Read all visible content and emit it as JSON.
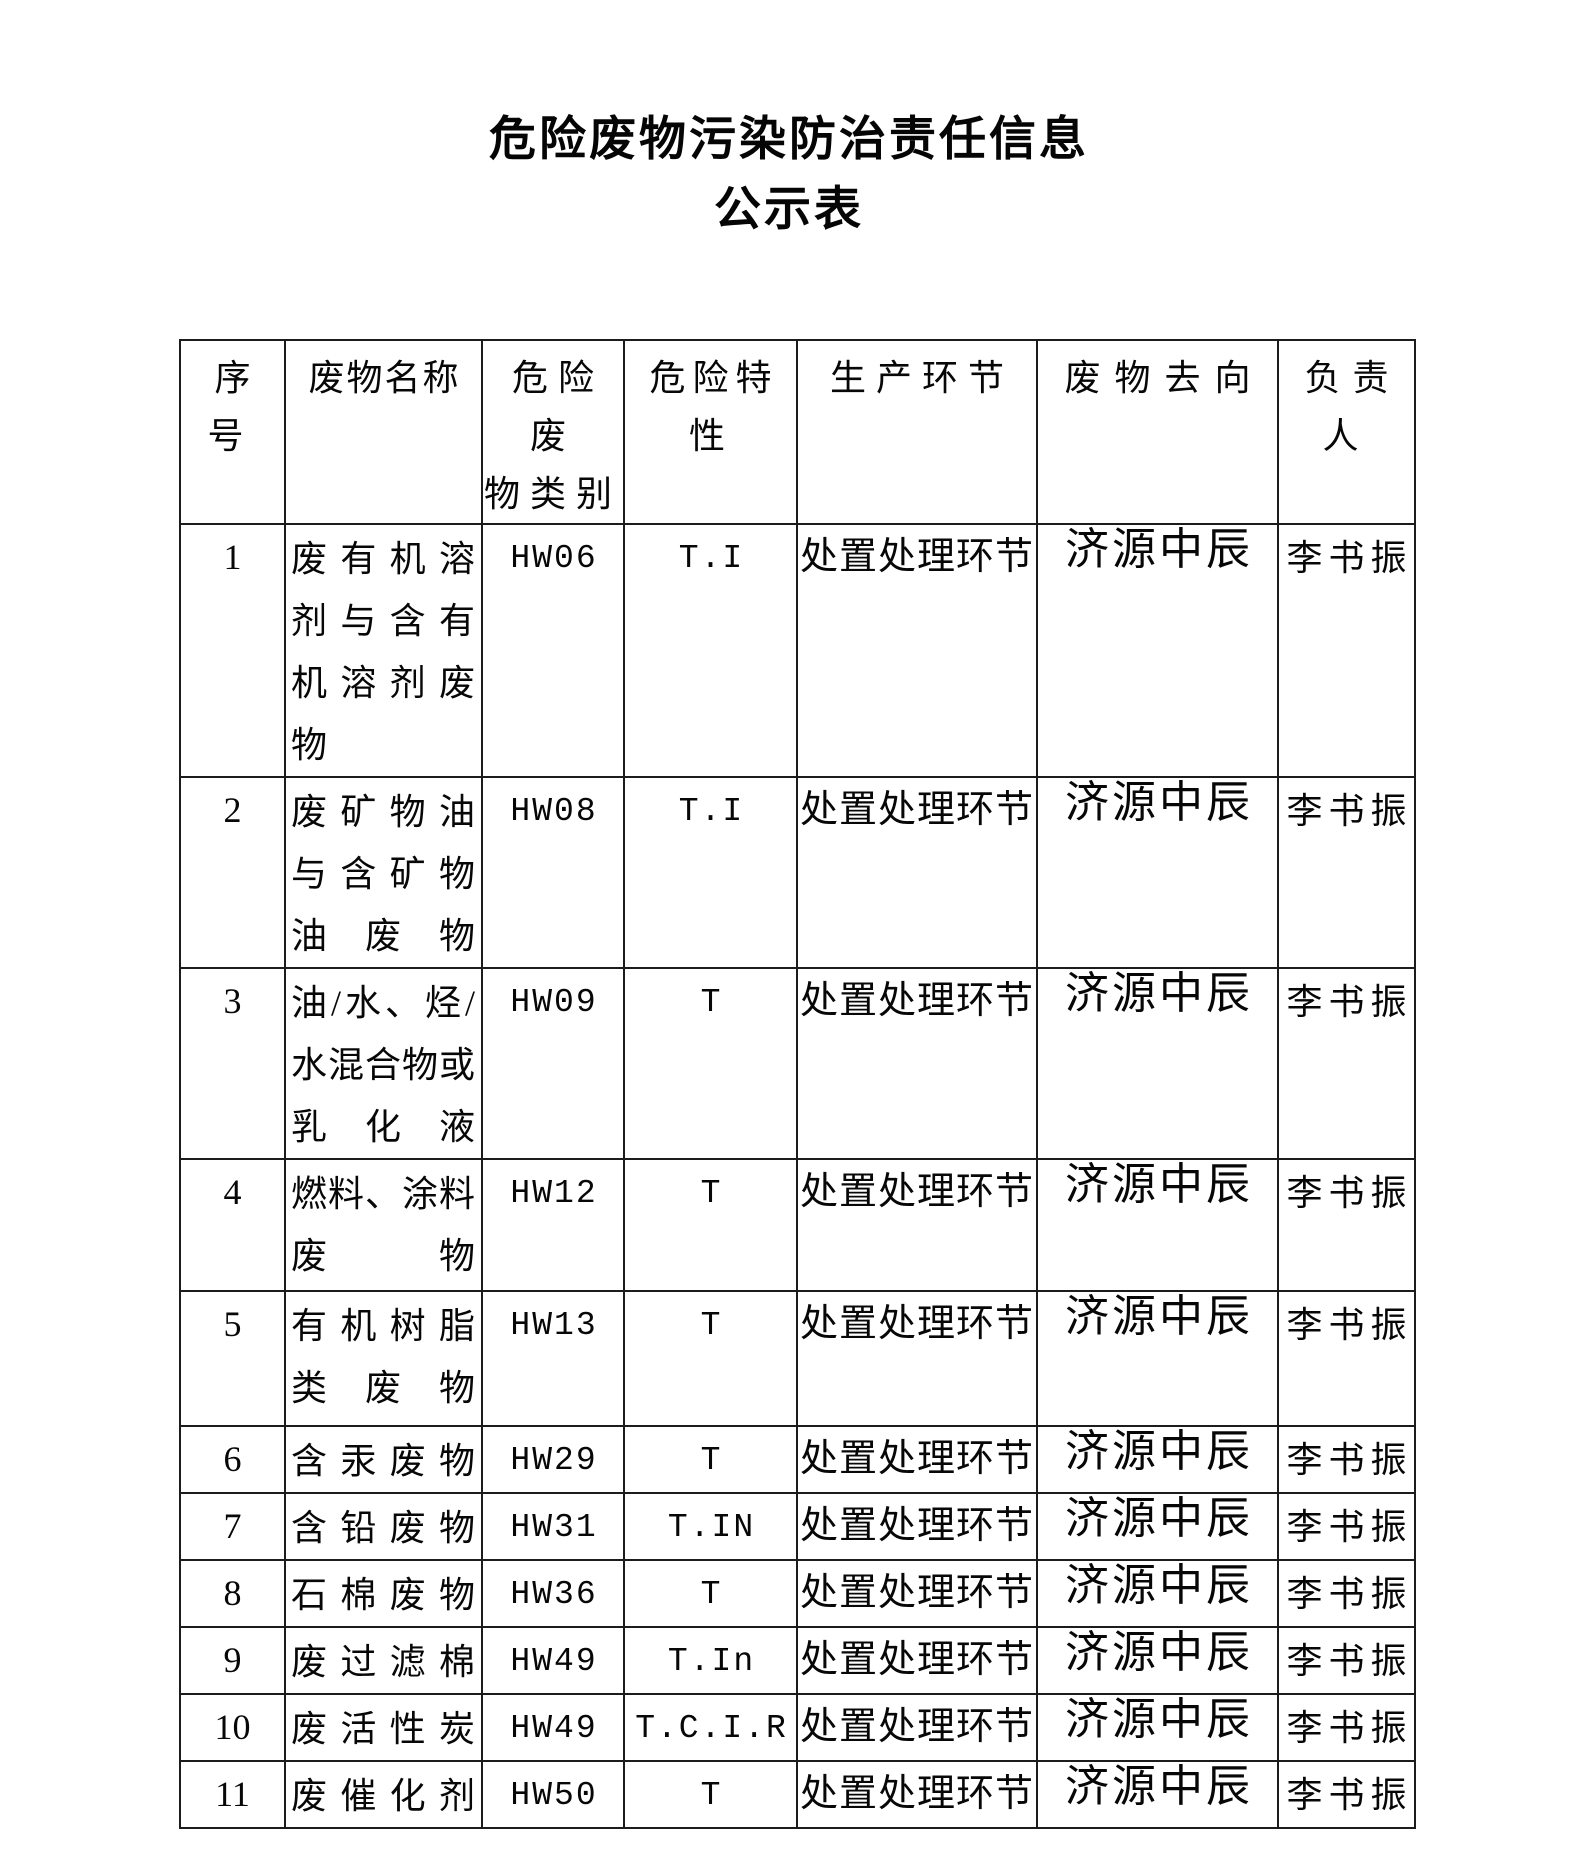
{
  "title": {
    "line1": "危险废物污染防治责任信息",
    "line2": "公示表"
  },
  "table": {
    "headers": [
      "序号",
      "废物名称",
      "危险废\n物类别",
      "危险特性",
      "生产环节",
      "废物去向",
      "负责人"
    ],
    "rows": [
      {
        "no": "1",
        "name_lines": [
          "废有机溶",
          "剂与含有",
          "机溶剂废",
          "物"
        ],
        "category": "HW06",
        "characteristic": "T.I",
        "stage": "处置处理环节",
        "destination": "济源中辰",
        "manager": "李书振"
      },
      {
        "no": "2",
        "name_lines": [
          "废矿物油",
          "与含矿物",
          "油废物"
        ],
        "category": "HW08",
        "characteristic": "T.I",
        "stage": "处置处理环节",
        "destination": "济源中辰",
        "manager": "李书振"
      },
      {
        "no": "3",
        "name_lines": [
          "油/水、烃/",
          "水混合物或",
          "乳化液"
        ],
        "category": "HW09",
        "characteristic": "T",
        "stage": "处置处理环节",
        "destination": "济源中辰",
        "manager": "李书振"
      },
      {
        "no": "4",
        "name_lines": [
          "燃料、涂料",
          "废物"
        ],
        "category": "HW12",
        "characteristic": "T",
        "stage": "处置处理环节",
        "destination": "济源中辰",
        "manager": "李书振"
      },
      {
        "no": "5",
        "name_lines": [
          "有机树脂",
          "类废物"
        ],
        "category": "HW13",
        "characteristic": "T",
        "stage": "处置处理环节",
        "destination": "济源中辰",
        "manager": "李书振"
      },
      {
        "no": "6",
        "name_lines": [
          "含汞废物"
        ],
        "category": "HW29",
        "characteristic": "T",
        "stage": "处置处理环节",
        "destination": "济源中辰",
        "manager": "李书振"
      },
      {
        "no": "7",
        "name_lines": [
          "含铅废物"
        ],
        "category": "HW31",
        "characteristic": "T.IN",
        "stage": "处置处理环节",
        "destination": "济源中辰",
        "manager": "李书振"
      },
      {
        "no": "8",
        "name_lines": [
          "石棉废物"
        ],
        "category": "HW36",
        "characteristic": "T",
        "stage": "处置处理环节",
        "destination": "济源中辰",
        "manager": "李书振"
      },
      {
        "no": "9",
        "name_lines": [
          "废过滤棉"
        ],
        "category": "HW49",
        "characteristic": "T.In",
        "stage": "处置处理环节",
        "destination": "济源中辰",
        "manager": "李书振"
      },
      {
        "no": "10",
        "name_lines": [
          "废活性炭"
        ],
        "category": "HW49",
        "characteristic": "T.C.I.R",
        "stage": "处置处理环节",
        "destination": "济源中辰",
        "manager": "李书振"
      },
      {
        "no": "11",
        "name_lines": [
          "废催化剂"
        ],
        "category": "HW50",
        "characteristic": "T",
        "stage": "处置处理环节",
        "destination": "济源中辰",
        "manager": "李书振"
      }
    ]
  }
}
